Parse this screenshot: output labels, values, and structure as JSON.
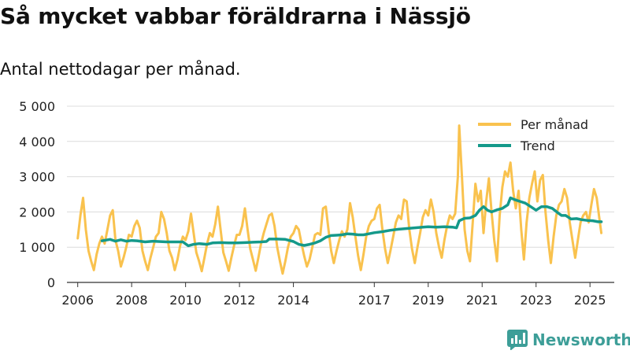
{
  "title": "Så mycket vabbar föräldrarna i Nässjö",
  "subtitle": "Antal nettodagar per månad.",
  "brand": "Newsworthy",
  "colors": {
    "monthly": "#f9c24e",
    "trend": "#14998a",
    "grid": "#dcdcdc",
    "axis": "#333333",
    "brand": "#3d9e98"
  },
  "chart_data": {
    "type": "line",
    "title": "Så mycket vabbar föräldrarna i Nässjö",
    "subtitle": "Antal nettodagar per månad.",
    "xlabel": "",
    "ylabel": "",
    "xlim": [
      2005.6,
      2025.9
    ],
    "ylim": [
      0,
      5000
    ],
    "yticks": [
      {
        "value": 0,
        "label": "0"
      },
      {
        "value": 1000,
        "label": "1 000"
      },
      {
        "value": 2000,
        "label": "2 000"
      },
      {
        "value": 3000,
        "label": "3 000"
      },
      {
        "value": 4000,
        "label": "4 000"
      },
      {
        "value": 5000,
        "label": "5 000"
      }
    ],
    "xticks": [
      {
        "value": 2006,
        "label": "2006"
      },
      {
        "value": 2008,
        "label": "2008"
      },
      {
        "value": 2010,
        "label": "2010"
      },
      {
        "value": 2012,
        "label": "2012"
      },
      {
        "value": 2014,
        "label": "2014"
      },
      {
        "value": 2017,
        "label": "2017"
      },
      {
        "value": 2019,
        "label": "2019"
      },
      {
        "value": 2021,
        "label": "2021"
      },
      {
        "value": 2023,
        "label": "2023"
      },
      {
        "value": 2025,
        "label": "2025"
      }
    ],
    "legend": {
      "position": "top-right"
    },
    "series": [
      {
        "name": "Per månad",
        "color": "#f9c24e",
        "points": [
          [
            2006.0,
            1250
          ],
          [
            2006.1,
            1900
          ],
          [
            2006.2,
            2400
          ],
          [
            2006.3,
            1500
          ],
          [
            2006.4,
            900
          ],
          [
            2006.5,
            600
          ],
          [
            2006.6,
            350
          ],
          [
            2006.7,
            800
          ],
          [
            2006.8,
            1100
          ],
          [
            2006.9,
            1300
          ],
          [
            2007.0,
            1100
          ],
          [
            2007.1,
            1500
          ],
          [
            2007.2,
            1900
          ],
          [
            2007.3,
            2050
          ],
          [
            2007.4,
            1200
          ],
          [
            2007.5,
            900
          ],
          [
            2007.6,
            450
          ],
          [
            2007.7,
            700
          ],
          [
            2007.8,
            1000
          ],
          [
            2007.9,
            1350
          ],
          [
            2008.0,
            1300
          ],
          [
            2008.1,
            1600
          ],
          [
            2008.2,
            1750
          ],
          [
            2008.3,
            1550
          ],
          [
            2008.4,
            900
          ],
          [
            2008.5,
            600
          ],
          [
            2008.6,
            350
          ],
          [
            2008.7,
            700
          ],
          [
            2008.8,
            1000
          ],
          [
            2008.9,
            1300
          ],
          [
            2009.0,
            1400
          ],
          [
            2009.1,
            2000
          ],
          [
            2009.2,
            1800
          ],
          [
            2009.3,
            1400
          ],
          [
            2009.4,
            900
          ],
          [
            2009.5,
            700
          ],
          [
            2009.6,
            350
          ],
          [
            2009.7,
            650
          ],
          [
            2009.8,
            1050
          ],
          [
            2009.9,
            1300
          ],
          [
            2010.0,
            1200
          ],
          [
            2010.1,
            1450
          ],
          [
            2010.2,
            1950
          ],
          [
            2010.3,
            1400
          ],
          [
            2010.4,
            850
          ],
          [
            2010.5,
            600
          ],
          [
            2010.6,
            320
          ],
          [
            2010.7,
            700
          ],
          [
            2010.8,
            1100
          ],
          [
            2010.9,
            1400
          ],
          [
            2011.0,
            1300
          ],
          [
            2011.1,
            1650
          ],
          [
            2011.2,
            2150
          ],
          [
            2011.3,
            1500
          ],
          [
            2011.4,
            850
          ],
          [
            2011.5,
            600
          ],
          [
            2011.6,
            330
          ],
          [
            2011.7,
            700
          ],
          [
            2011.8,
            1050
          ],
          [
            2011.9,
            1350
          ],
          [
            2012.0,
            1350
          ],
          [
            2012.1,
            1600
          ],
          [
            2012.2,
            2100
          ],
          [
            2012.3,
            1500
          ],
          [
            2012.4,
            950
          ],
          [
            2012.5,
            650
          ],
          [
            2012.6,
            330
          ],
          [
            2012.7,
            700
          ],
          [
            2012.8,
            1100
          ],
          [
            2012.9,
            1400
          ],
          [
            2013.0,
            1650
          ],
          [
            2013.1,
            1900
          ],
          [
            2013.2,
            1950
          ],
          [
            2013.3,
            1600
          ],
          [
            2013.4,
            1000
          ],
          [
            2013.5,
            600
          ],
          [
            2013.6,
            250
          ],
          [
            2013.7,
            600
          ],
          [
            2013.8,
            1000
          ],
          [
            2013.9,
            1300
          ],
          [
            2014.0,
            1400
          ],
          [
            2014.1,
            1600
          ],
          [
            2014.2,
            1500
          ],
          [
            2014.3,
            1100
          ],
          [
            2014.4,
            750
          ],
          [
            2014.5,
            450
          ],
          [
            2014.6,
            650
          ],
          [
            2014.7,
            1000
          ],
          [
            2014.8,
            1350
          ],
          [
            2014.9,
            1400
          ],
          [
            2015.0,
            1350
          ],
          [
            2015.1,
            2100
          ],
          [
            2015.2,
            2150
          ],
          [
            2015.3,
            1500
          ],
          [
            2015.4,
            900
          ],
          [
            2015.5,
            550
          ],
          [
            2015.6,
            900
          ],
          [
            2015.7,
            1200
          ],
          [
            2015.8,
            1450
          ],
          [
            2015.9,
            1300
          ],
          [
            2016.0,
            1500
          ],
          [
            2016.1,
            2250
          ],
          [
            2016.2,
            1850
          ],
          [
            2016.3,
            1300
          ],
          [
            2016.4,
            750
          ],
          [
            2016.5,
            350
          ],
          [
            2016.6,
            800
          ],
          [
            2016.7,
            1300
          ],
          [
            2016.8,
            1600
          ],
          [
            2016.9,
            1750
          ],
          [
            2017.0,
            1800
          ],
          [
            2017.1,
            2100
          ],
          [
            2017.2,
            2200
          ],
          [
            2017.3,
            1500
          ],
          [
            2017.4,
            950
          ],
          [
            2017.5,
            550
          ],
          [
            2017.6,
            900
          ],
          [
            2017.7,
            1300
          ],
          [
            2017.8,
            1700
          ],
          [
            2017.9,
            1900
          ],
          [
            2018.0,
            1800
          ],
          [
            2018.1,
            2350
          ],
          [
            2018.2,
            2300
          ],
          [
            2018.3,
            1500
          ],
          [
            2018.4,
            950
          ],
          [
            2018.5,
            550
          ],
          [
            2018.6,
            1000
          ],
          [
            2018.7,
            1400
          ],
          [
            2018.8,
            1850
          ],
          [
            2018.9,
            2050
          ],
          [
            2019.0,
            1900
          ],
          [
            2019.1,
            2350
          ],
          [
            2019.2,
            2000
          ],
          [
            2019.3,
            1400
          ],
          [
            2019.4,
            1000
          ],
          [
            2019.5,
            700
          ],
          [
            2019.6,
            1200
          ],
          [
            2019.7,
            1600
          ],
          [
            2019.8,
            1900
          ],
          [
            2019.9,
            1800
          ],
          [
            2020.0,
            1950
          ],
          [
            2020.1,
            3000
          ],
          [
            2020.15,
            4450
          ],
          [
            2020.25,
            3000
          ],
          [
            2020.35,
            1500
          ],
          [
            2020.45,
            900
          ],
          [
            2020.55,
            600
          ],
          [
            2020.65,
            1700
          ],
          [
            2020.75,
            2800
          ],
          [
            2020.85,
            2300
          ],
          [
            2020.95,
            2600
          ],
          [
            2021.05,
            1400
          ],
          [
            2021.15,
            2300
          ],
          [
            2021.25,
            2950
          ],
          [
            2021.35,
            2000
          ],
          [
            2021.45,
            1200
          ],
          [
            2021.55,
            600
          ],
          [
            2021.65,
            1900
          ],
          [
            2021.75,
            2700
          ],
          [
            2021.85,
            3150
          ],
          [
            2021.95,
            3000
          ],
          [
            2022.05,
            3400
          ],
          [
            2022.15,
            2600
          ],
          [
            2022.25,
            2100
          ],
          [
            2022.35,
            2600
          ],
          [
            2022.45,
            1500
          ],
          [
            2022.55,
            650
          ],
          [
            2022.65,
            1700
          ],
          [
            2022.75,
            2400
          ],
          [
            2022.85,
            2800
          ],
          [
            2022.95,
            3150
          ],
          [
            2023.05,
            2300
          ],
          [
            2023.15,
            2900
          ],
          [
            2023.25,
            3050
          ],
          [
            2023.35,
            2000
          ],
          [
            2023.45,
            1200
          ],
          [
            2023.55,
            550
          ],
          [
            2023.65,
            1300
          ],
          [
            2023.75,
            1900
          ],
          [
            2023.85,
            2200
          ],
          [
            2023.95,
            2300
          ],
          [
            2024.05,
            2650
          ],
          [
            2024.15,
            2400
          ],
          [
            2024.25,
            1700
          ],
          [
            2024.35,
            1200
          ],
          [
            2024.45,
            700
          ],
          [
            2024.55,
            1200
          ],
          [
            2024.65,
            1700
          ],
          [
            2024.75,
            1900
          ],
          [
            2024.85,
            2000
          ],
          [
            2024.95,
            1700
          ],
          [
            2025.05,
            2200
          ],
          [
            2025.15,
            2650
          ],
          [
            2025.25,
            2400
          ],
          [
            2025.35,
            1800
          ],
          [
            2025.42,
            1400
          ]
        ]
      },
      {
        "name": "Trend",
        "color": "#14998a",
        "points": [
          [
            2006.9,
            1180
          ],
          [
            2007.2,
            1220
          ],
          [
            2007.4,
            1170
          ],
          [
            2007.6,
            1210
          ],
          [
            2007.8,
            1170
          ],
          [
            2008.0,
            1190
          ],
          [
            2008.2,
            1180
          ],
          [
            2008.5,
            1150
          ],
          [
            2008.8,
            1170
          ],
          [
            2009.0,
            1160
          ],
          [
            2009.3,
            1150
          ],
          [
            2009.6,
            1150
          ],
          [
            2009.9,
            1150
          ],
          [
            2010.1,
            1040
          ],
          [
            2010.3,
            1080
          ],
          [
            2010.5,
            1100
          ],
          [
            2010.8,
            1080
          ],
          [
            2011.0,
            1120
          ],
          [
            2011.3,
            1130
          ],
          [
            2011.6,
            1120
          ],
          [
            2011.9,
            1120
          ],
          [
            2012.2,
            1130
          ],
          [
            2012.5,
            1140
          ],
          [
            2012.8,
            1150
          ],
          [
            2013.0,
            1160
          ],
          [
            2013.1,
            1230
          ],
          [
            2013.4,
            1230
          ],
          [
            2013.7,
            1220
          ],
          [
            2014.0,
            1160
          ],
          [
            2014.2,
            1080
          ],
          [
            2014.4,
            1050
          ],
          [
            2014.6,
            1080
          ],
          [
            2014.8,
            1120
          ],
          [
            2015.0,
            1180
          ],
          [
            2015.2,
            1280
          ],
          [
            2015.4,
            1330
          ],
          [
            2015.6,
            1340
          ],
          [
            2015.8,
            1350
          ],
          [
            2016.0,
            1380
          ],
          [
            2016.2,
            1370
          ],
          [
            2016.4,
            1350
          ],
          [
            2016.6,
            1350
          ],
          [
            2016.8,
            1380
          ],
          [
            2017.0,
            1410
          ],
          [
            2017.3,
            1440
          ],
          [
            2017.6,
            1480
          ],
          [
            2017.9,
            1510
          ],
          [
            2018.2,
            1530
          ],
          [
            2018.5,
            1550
          ],
          [
            2018.8,
            1570
          ],
          [
            2019.0,
            1580
          ],
          [
            2019.3,
            1570
          ],
          [
            2019.6,
            1580
          ],
          [
            2019.9,
            1570
          ],
          [
            2020.05,
            1550
          ],
          [
            2020.15,
            1750
          ],
          [
            2020.35,
            1820
          ],
          [
            2020.55,
            1830
          ],
          [
            2020.75,
            1900
          ],
          [
            2020.9,
            2050
          ],
          [
            2021.05,
            2150
          ],
          [
            2021.2,
            2050
          ],
          [
            2021.35,
            2000
          ],
          [
            2021.55,
            2060
          ],
          [
            2021.75,
            2100
          ],
          [
            2021.95,
            2200
          ],
          [
            2022.05,
            2400
          ],
          [
            2022.2,
            2350
          ],
          [
            2022.4,
            2300
          ],
          [
            2022.6,
            2250
          ],
          [
            2022.8,
            2150
          ],
          [
            2023.0,
            2050
          ],
          [
            2023.2,
            2150
          ],
          [
            2023.4,
            2150
          ],
          [
            2023.6,
            2100
          ],
          [
            2023.8,
            1980
          ],
          [
            2023.95,
            1900
          ],
          [
            2024.1,
            1900
          ],
          [
            2024.3,
            1800
          ],
          [
            2024.5,
            1810
          ],
          [
            2024.7,
            1780
          ],
          [
            2024.9,
            1760
          ],
          [
            2025.1,
            1750
          ],
          [
            2025.3,
            1720
          ],
          [
            2025.42,
            1720
          ]
        ]
      }
    ]
  }
}
